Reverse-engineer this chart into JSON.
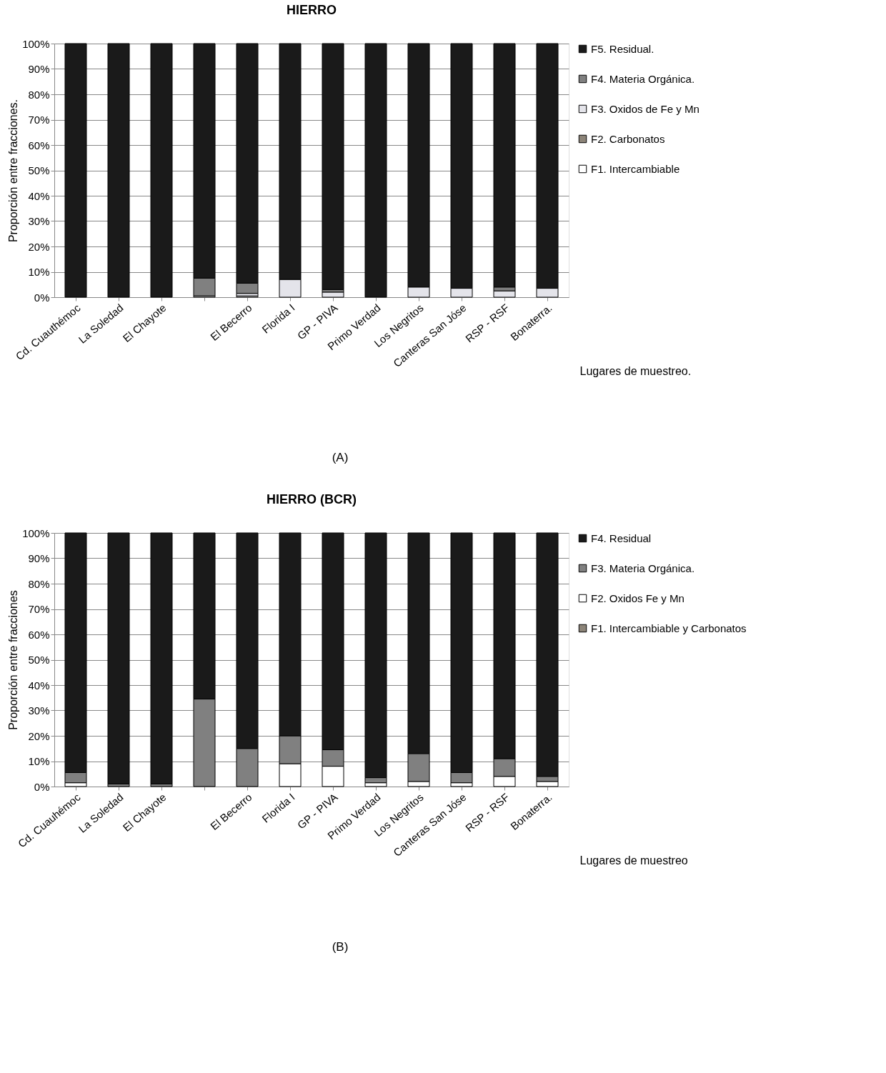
{
  "chart_data": [
    {
      "type": "bar",
      "title": "HIERRO",
      "xlabel": "Lugares de muestreo.",
      "ylabel": "Proporción entre fracciones.",
      "stacked": true,
      "grid": "y",
      "legend": "right",
      "annotations": [
        "(A)"
      ],
      "categories": [
        "Cd. Cuauthémoc",
        "La Soledad",
        "El Chayote",
        null,
        "El Becerro",
        "Florida I",
        "GP - PIVA",
        "Primo Verdad",
        "Los Negritos",
        "Canteras San Jóse",
        "RSP - RSF",
        "Bonaterra."
      ],
      "ylim": [
        0,
        100
      ],
      "yticks": [
        {
          "value": 0,
          "label": "0%"
        },
        {
          "value": 10,
          "label": "10%"
        },
        {
          "value": 20,
          "label": "20%"
        },
        {
          "value": 30,
          "label": "30%"
        },
        {
          "value": 40,
          "label": "40%"
        },
        {
          "value": 50,
          "label": "50%"
        },
        {
          "value": 60,
          "label": "60%"
        },
        {
          "value": 70,
          "label": "70%"
        },
        {
          "value": 80,
          "label": "80%"
        },
        {
          "value": 90,
          "label": "90%"
        },
        {
          "value": 100,
          "label": "100%"
        }
      ],
      "series": [
        {
          "name": "F1. Intercambiable",
          "color": "#ffffff",
          "values": [
            0,
            0,
            0,
            0.5,
            0.5,
            0,
            0,
            0,
            0,
            0,
            0,
            0
          ]
        },
        {
          "name": "F2. Carbonatos",
          "color": "#8c8478",
          "values": [
            0,
            0,
            0,
            0,
            0,
            0,
            0,
            0,
            0,
            0,
            0,
            0
          ]
        },
        {
          "name": "F3. Oxidos de Fe y Mn",
          "color": "#e4e4ea",
          "values": [
            0,
            0,
            0,
            0,
            1,
            7,
            2,
            0,
            4,
            3.5,
            2.5,
            3.5
          ]
        },
        {
          "name": "F4. Materia Orgánica.",
          "color": "#808080",
          "values": [
            0,
            0,
            0,
            7,
            4,
            0,
            1,
            0,
            0,
            0,
            1.5,
            0
          ]
        },
        {
          "name": "F5. Residual.",
          "color": "#1a1a1a",
          "values": [
            100,
            100,
            100,
            92.5,
            94.5,
            93,
            97,
            100,
            96,
            96.5,
            96,
            96.5
          ]
        }
      ]
    },
    {
      "type": "bar",
      "title": "HIERRO (BCR)",
      "xlabel": "Lugares de muestreo",
      "ylabel": "Proporción entre fracciones",
      "stacked": true,
      "grid": "y",
      "legend": "right",
      "annotations": [
        "(B)"
      ],
      "categories": [
        "Cd. Cuauhémoc",
        "La Soledad",
        "El Chayote",
        null,
        "El Becerro",
        "Florida I",
        "GP - PIVA",
        "Primo Verdad",
        "Los Negritos",
        "Canteras San Jóse",
        "RSP - RSF",
        "Bonaterra."
      ],
      "ylim": [
        0,
        100
      ],
      "yticks": [
        {
          "value": 0,
          "label": "0%"
        },
        {
          "value": 10,
          "label": "10%"
        },
        {
          "value": 20,
          "label": "20%"
        },
        {
          "value": 30,
          "label": "30%"
        },
        {
          "value": 40,
          "label": "40%"
        },
        {
          "value": 50,
          "label": "50%"
        },
        {
          "value": 60,
          "label": "60%"
        },
        {
          "value": 70,
          "label": "70%"
        },
        {
          "value": 80,
          "label": "80%"
        },
        {
          "value": 90,
          "label": "90%"
        },
        {
          "value": 100,
          "label": "100%"
        }
      ],
      "series": [
        {
          "name": "F1. Intercambiable y Carbonatos",
          "color": "#8c8478",
          "values": [
            0,
            0,
            0,
            0,
            0,
            0,
            0,
            0,
            0,
            0,
            0,
            0
          ]
        },
        {
          "name": "F2. Oxidos Fe y Mn",
          "color": "#ffffff",
          "values": [
            1.5,
            0,
            0,
            0,
            0,
            9,
            8,
            1.5,
            2,
            1.5,
            4,
            2
          ]
        },
        {
          "name": "F3. Materia Orgánica.",
          "color": "#808080",
          "values": [
            4,
            1,
            1,
            34.5,
            15,
            11,
            6.5,
            2,
            11,
            4,
            7,
            2
          ]
        },
        {
          "name": "F4. Residual",
          "color": "#1a1a1a",
          "values": [
            94.5,
            99,
            99,
            65.5,
            85,
            80,
            85.5,
            96.5,
            87,
            94.5,
            89,
            96
          ]
        }
      ]
    }
  ]
}
